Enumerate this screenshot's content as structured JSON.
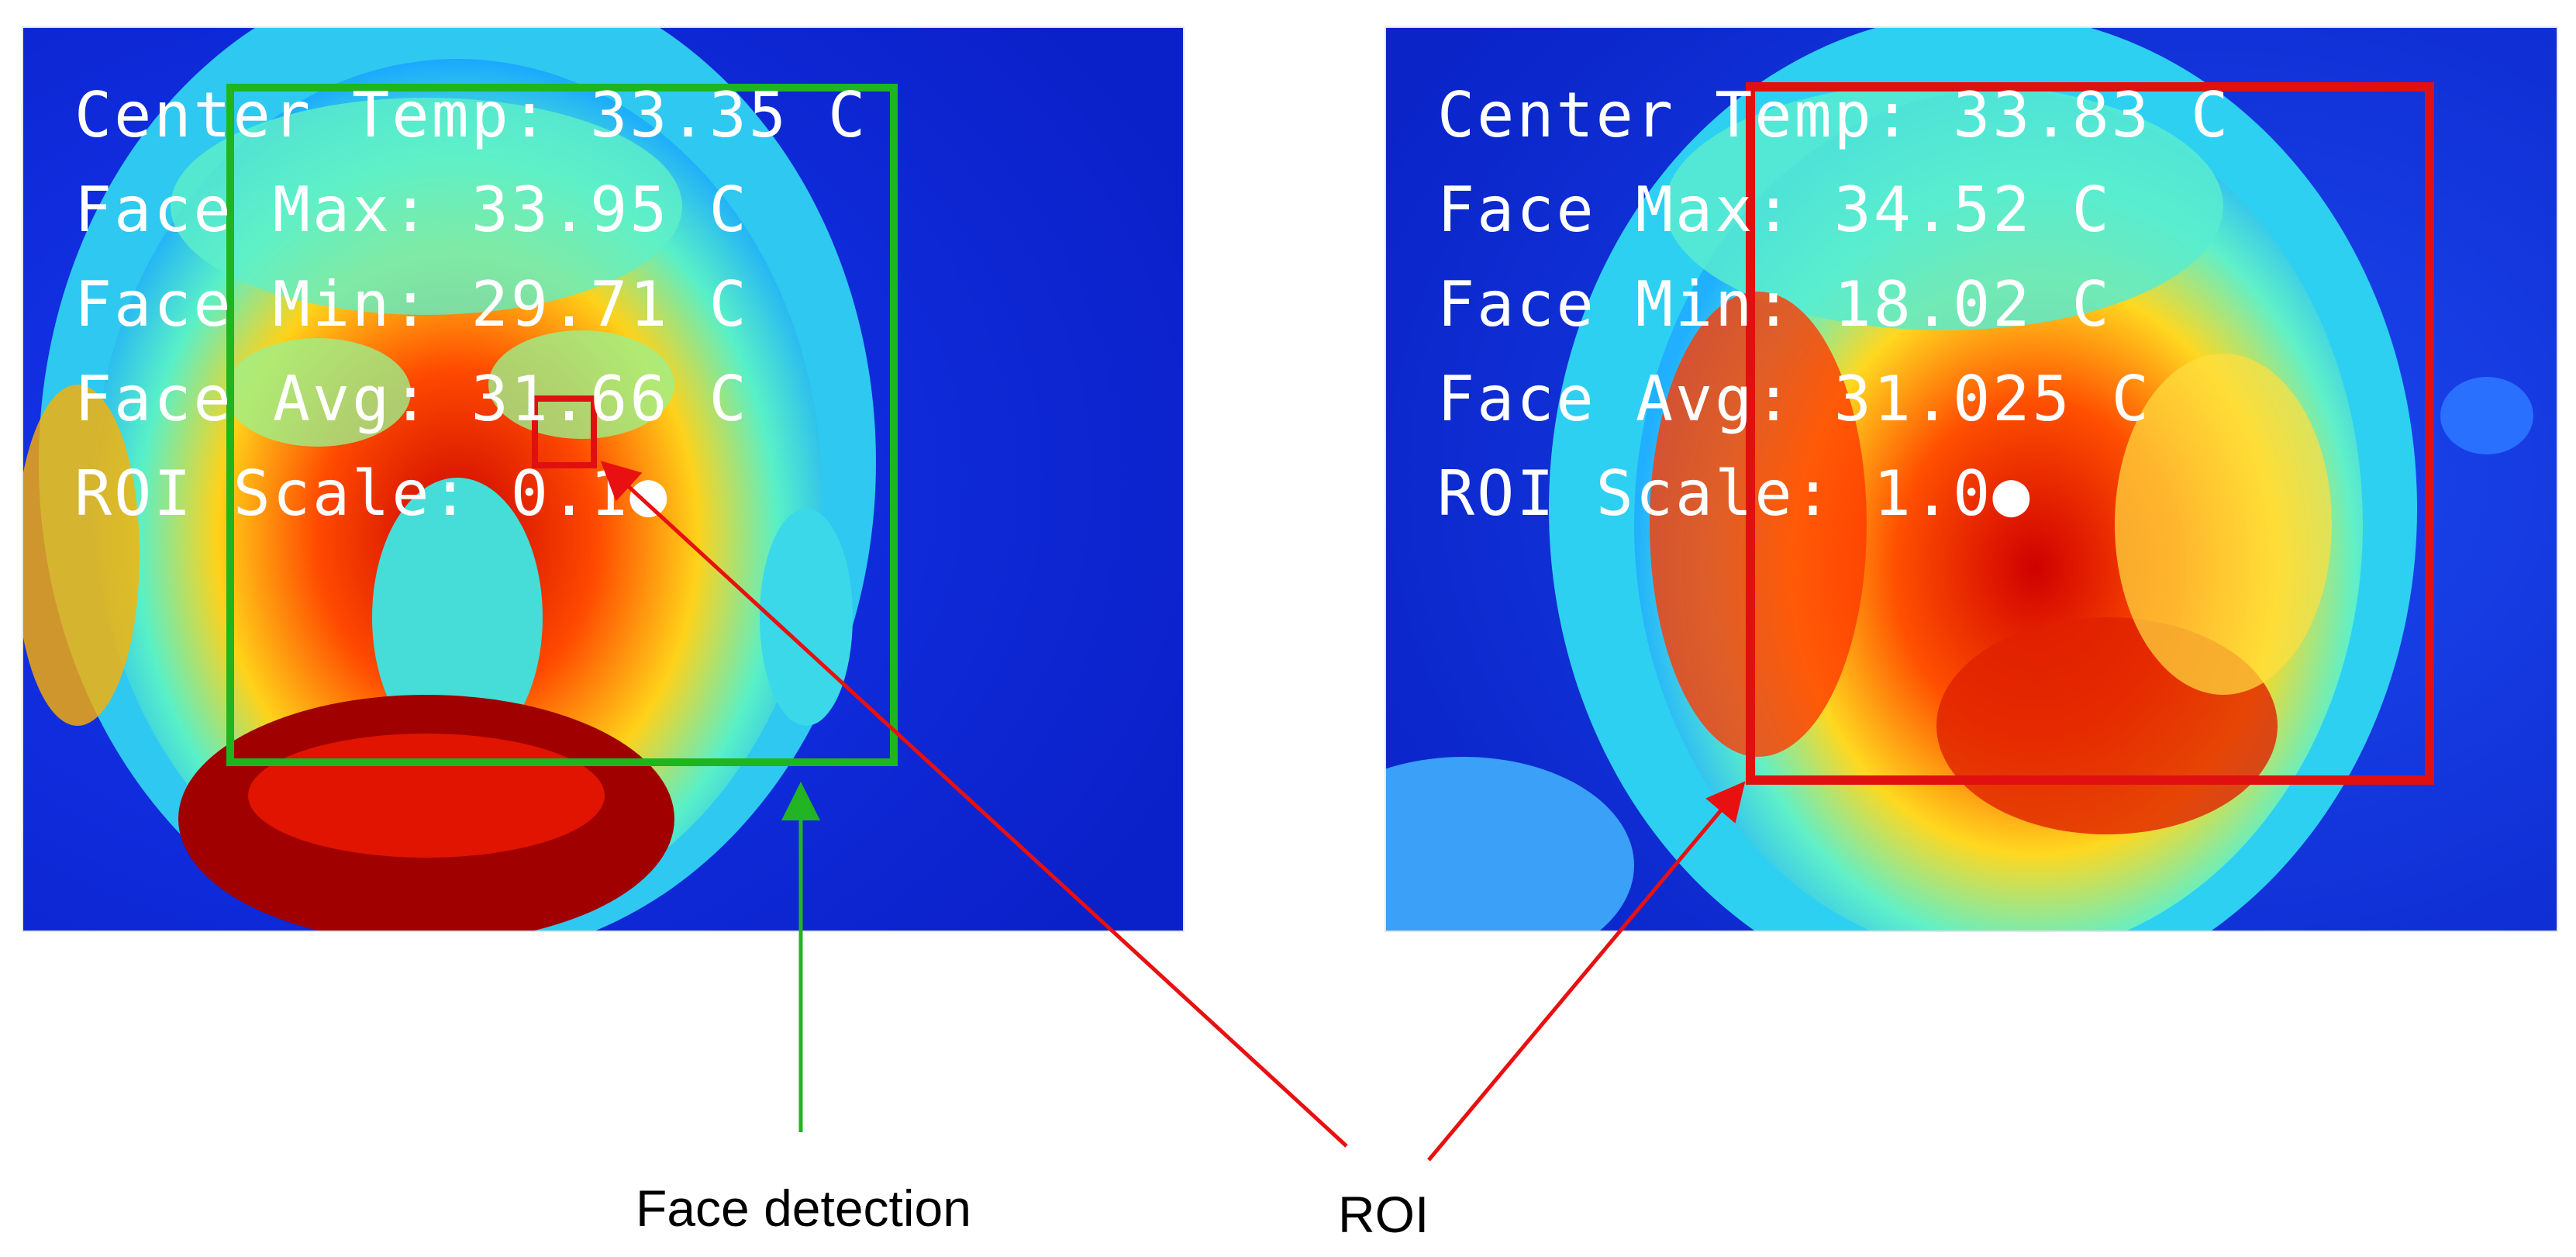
{
  "colors": {
    "face_box": "#1fb51f",
    "roi_box": "#e01010",
    "arrow_green": "#22b422",
    "arrow_red": "#e81010",
    "overlay_text": "#ffffff",
    "thermal_background": "#0a2bd8"
  },
  "left_panel": {
    "lines": [
      "Center Temp: 33.35 C",
      "Face Max: 33.95 C",
      "Face Min: 29.71 C",
      "Face Avg: 31.66 C",
      "ROI Scale: 0.1●"
    ]
  },
  "right_panel": {
    "lines": [
      "Center Temp: 33.83 C",
      "Face Max: 34.52 C",
      "Face Min: 18.02 C",
      "Face Avg: 31.025 C",
      "ROI Scale: 1.0●"
    ]
  },
  "labels": {
    "face_detection": "Face detection",
    "roi": "ROI"
  }
}
